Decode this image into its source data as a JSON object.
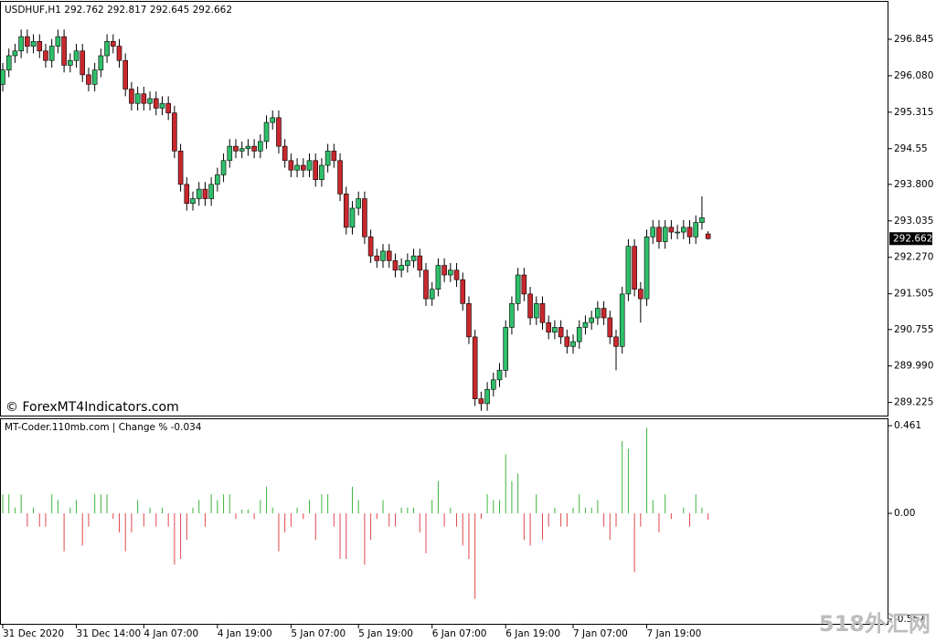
{
  "chart_data": [
    {
      "type": "candlestick",
      "title": "USDHUF,H1  292.762 292.817 292.645 292.662",
      "watermark": "© ForexMT4Indicators.com",
      "up_color": "#2fbf6a",
      "down_color": "#c8282d",
      "ylim": [
        288.93,
        297.65
      ],
      "yticks": [
        296.845,
        {
          "value": 296.08,
          "label": "296.080"
        },
        295.315,
        294.55,
        {
          "value": 293.8,
          "label": "293.800"
        },
        293.035,
        {
          "value": 292.27,
          "label": "292.270"
        },
        291.505,
        290.755,
        {
          "value": 289.99,
          "label": "289.990"
        },
        289.225
      ],
      "open": [
        295.9,
        296.2,
        296.5,
        296.6,
        296.9,
        296.7,
        296.8,
        296.6,
        296.4,
        296.7,
        296.9,
        296.3,
        296.4,
        296.6,
        296.1,
        295.9,
        296.2,
        296.5,
        296.8,
        296.7,
        296.4,
        295.8,
        295.5,
        295.7,
        295.5,
        295.6,
        295.4,
        295.5,
        295.3,
        294.5,
        293.8,
        293.4,
        293.5,
        293.7,
        293.5,
        293.8,
        294.0,
        294.3,
        294.6,
        294.5,
        294.55,
        294.6,
        294.5,
        294.7,
        295.1,
        295.2,
        294.6,
        294.3,
        294.1,
        294.2,
        294.1,
        294.3,
        293.9,
        294.2,
        294.5,
        294.3,
        293.6,
        292.9,
        293.3,
        293.5,
        292.7,
        292.3,
        292.2,
        292.4,
        292.2,
        292.0,
        292.1,
        292.2,
        292.3,
        292.0,
        291.4,
        291.6,
        292.1,
        291.9,
        292.0,
        291.8,
        291.3,
        290.6,
        289.3,
        289.2,
        289.5,
        289.7,
        289.9,
        290.8,
        291.3,
        291.9,
        291.5,
        291.0,
        291.3,
        290.9,
        290.7,
        290.8,
        290.6,
        290.4,
        290.5,
        290.8,
        290.9,
        291.0,
        291.2,
        291.0,
        290.6,
        290.4,
        291.5,
        292.5,
        291.6,
        291.4,
        292.7,
        292.9,
        292.6,
        292.9,
        292.8,
        292.8,
        292.9,
        292.7,
        293.0,
        292.762
      ],
      "high": [
        296.35,
        296.65,
        296.75,
        297.05,
        297.05,
        296.95,
        296.95,
        296.75,
        296.85,
        297.05,
        297.05,
        296.55,
        296.75,
        296.75,
        296.25,
        296.35,
        296.65,
        296.95,
        296.95,
        296.85,
        296.55,
        295.95,
        295.85,
        295.85,
        295.75,
        295.75,
        295.65,
        295.65,
        295.45,
        294.65,
        293.95,
        293.65,
        293.85,
        293.85,
        293.95,
        294.15,
        294.45,
        294.75,
        294.75,
        294.7,
        294.75,
        294.75,
        294.85,
        295.25,
        295.35,
        295.35,
        294.75,
        294.45,
        294.35,
        294.35,
        294.45,
        294.45,
        294.35,
        294.65,
        294.65,
        294.45,
        293.75,
        293.45,
        293.65,
        293.65,
        292.85,
        292.45,
        292.55,
        292.55,
        292.35,
        292.25,
        292.35,
        292.45,
        292.45,
        292.15,
        291.75,
        292.25,
        292.25,
        292.15,
        292.15,
        291.95,
        291.45,
        290.75,
        289.45,
        289.65,
        289.85,
        290.05,
        290.95,
        291.45,
        292.05,
        292.05,
        291.65,
        291.45,
        291.45,
        291.05,
        290.95,
        290.95,
        290.75,
        290.65,
        290.95,
        291.05,
        291.15,
        291.35,
        291.35,
        291.15,
        290.75,
        291.65,
        292.65,
        292.65,
        291.75,
        292.85,
        293.05,
        293.05,
        293.05,
        293.05,
        292.95,
        293.05,
        293.05,
        293.15,
        293.55,
        292.817
      ],
      "low": [
        295.75,
        296.05,
        296.35,
        296.45,
        296.55,
        296.55,
        296.45,
        296.25,
        296.25,
        296.55,
        296.15,
        296.15,
        296.25,
        295.95,
        295.75,
        295.75,
        296.05,
        296.35,
        296.55,
        296.25,
        295.65,
        295.35,
        295.35,
        295.35,
        295.35,
        295.25,
        295.25,
        295.15,
        294.35,
        293.65,
        293.25,
        293.25,
        293.35,
        293.35,
        293.35,
        293.65,
        293.85,
        294.15,
        294.35,
        294.35,
        294.4,
        294.35,
        294.35,
        294.55,
        294.95,
        294.45,
        294.15,
        293.95,
        293.95,
        293.95,
        293.95,
        293.75,
        293.75,
        294.05,
        294.15,
        293.45,
        292.75,
        292.75,
        293.15,
        292.55,
        292.15,
        292.05,
        292.05,
        292.05,
        291.85,
        291.85,
        291.95,
        292.05,
        291.85,
        291.25,
        291.25,
        291.45,
        291.75,
        291.75,
        291.65,
        291.15,
        290.45,
        289.15,
        289.05,
        289.05,
        289.35,
        289.55,
        289.75,
        290.65,
        291.15,
        291.35,
        290.85,
        290.85,
        290.75,
        290.55,
        290.55,
        290.45,
        290.25,
        290.25,
        290.35,
        290.65,
        290.75,
        290.85,
        290.85,
        290.45,
        289.9,
        290.25,
        291.35,
        291.45,
        290.9,
        291.25,
        292.55,
        292.45,
        292.45,
        292.65,
        292.65,
        292.65,
        292.55,
        292.55,
        292.85,
        292.645
      ],
      "close": [
        296.2,
        296.5,
        296.6,
        296.9,
        296.7,
        296.8,
        296.6,
        296.4,
        296.7,
        296.9,
        296.3,
        296.4,
        296.6,
        296.1,
        295.9,
        296.2,
        296.5,
        296.8,
        296.7,
        296.4,
        295.8,
        295.5,
        295.7,
        295.5,
        295.6,
        295.4,
        295.5,
        295.3,
        294.5,
        293.8,
        293.4,
        293.5,
        293.7,
        293.5,
        293.8,
        294.0,
        294.3,
        294.6,
        294.5,
        294.55,
        294.6,
        294.5,
        294.7,
        295.1,
        295.2,
        294.6,
        294.3,
        294.1,
        294.2,
        294.1,
        294.3,
        293.9,
        294.2,
        294.5,
        294.3,
        293.6,
        292.9,
        293.3,
        293.5,
        292.7,
        292.3,
        292.2,
        292.4,
        292.2,
        292.0,
        292.1,
        292.2,
        292.3,
        292.0,
        291.4,
        291.6,
        292.1,
        291.9,
        292.0,
        291.8,
        291.3,
        290.6,
        289.3,
        289.2,
        289.5,
        289.7,
        289.9,
        290.8,
        291.3,
        291.9,
        291.5,
        291.0,
        291.3,
        290.9,
        290.7,
        290.8,
        290.6,
        290.4,
        290.5,
        290.8,
        290.9,
        291.0,
        291.2,
        291.0,
        290.6,
        290.4,
        291.5,
        292.5,
        291.6,
        291.4,
        292.7,
        292.9,
        292.6,
        292.9,
        292.8,
        292.8,
        292.9,
        292.7,
        293.0,
        293.1,
        292.662
      ]
    },
    {
      "type": "bar",
      "title": "MT-Coder.110mb.com | Change % -0.034",
      "up_color": "#3cb43c",
      "down_color": "#e0474c",
      "ylim": [
        -0.586,
        0.495
      ],
      "yticks": [
        0.461,
        {
          "value": 0,
          "label": "0.00"
        },
        -0.557
      ],
      "categories": [
        "31 Dec 2020",
        null,
        null,
        null,
        null,
        null,
        null,
        null,
        null,
        null,
        null,
        null,
        "31 Dec 14:00",
        null,
        null,
        null,
        null,
        null,
        null,
        null,
        null,
        null,
        null,
        "4 Jan 07:00",
        null,
        null,
        null,
        null,
        null,
        null,
        null,
        null,
        null,
        null,
        null,
        "4 Jan 19:00",
        null,
        null,
        null,
        null,
        null,
        null,
        null,
        null,
        null,
        null,
        null,
        "5 Jan 07:00",
        null,
        null,
        null,
        null,
        null,
        null,
        null,
        null,
        null,
        null,
        "5 Jan 19:00",
        null,
        null,
        null,
        null,
        null,
        null,
        null,
        null,
        null,
        null,
        null,
        "6 Jan 07:00",
        null,
        null,
        null,
        null,
        null,
        null,
        null,
        null,
        null,
        null,
        null,
        "6 Jan 19:00",
        null,
        null,
        null,
        null,
        null,
        null,
        null,
        null,
        null,
        null,
        "7 Jan 07:00",
        null,
        null,
        null,
        null,
        null,
        null,
        null,
        null,
        null,
        null,
        null,
        "7 Jan 19:00",
        null,
        null,
        null,
        null,
        null,
        null,
        null,
        null,
        null,
        null
      ],
      "values": [
        0.1,
        0.1,
        0.03,
        0.1,
        -0.07,
        0.03,
        -0.07,
        -0.07,
        0.1,
        0.07,
        -0.2,
        0.03,
        0.07,
        -0.17,
        -0.07,
        0.1,
        0.1,
        0.1,
        -0.03,
        -0.1,
        -0.2,
        -0.1,
        0.07,
        -0.07,
        0.03,
        -0.07,
        0.03,
        -0.07,
        -0.27,
        -0.24,
        -0.14,
        0.03,
        0.07,
        -0.07,
        0.1,
        0.07,
        0.1,
        0.1,
        -0.03,
        0.02,
        0.02,
        -0.03,
        0.07,
        0.14,
        0.03,
        -0.2,
        -0.1,
        -0.07,
        0.03,
        -0.03,
        0.07,
        -0.14,
        0.1,
        0.1,
        -0.07,
        -0.24,
        -0.24,
        0.14,
        0.07,
        -0.27,
        -0.14,
        -0.03,
        0.07,
        -0.07,
        -0.07,
        0.03,
        0.03,
        0.03,
        -0.1,
        -0.21,
        0.07,
        0.17,
        -0.07,
        0.03,
        -0.07,
        -0.17,
        -0.24,
        -0.45,
        -0.03,
        0.1,
        0.07,
        0.07,
        0.31,
        0.17,
        0.21,
        -0.14,
        -0.17,
        0.1,
        -0.14,
        -0.07,
        0.03,
        -0.07,
        -0.07,
        0.03,
        0.1,
        0.03,
        0.03,
        0.07,
        -0.07,
        -0.14,
        -0.07,
        0.38,
        0.34,
        -0.31,
        -0.07,
        0.45,
        0.07,
        -0.1,
        0.1,
        -0.03,
        0.0,
        0.03,
        -0.07,
        0.1,
        0.03,
        -0.034
      ]
    }
  ],
  "watermark": "518外汇网"
}
